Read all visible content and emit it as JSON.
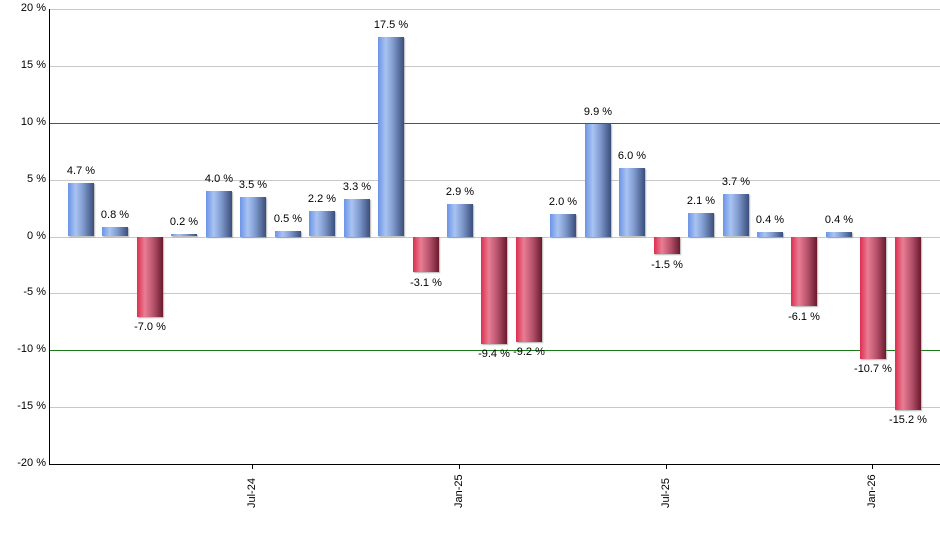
{
  "chart_data": {
    "type": "bar",
    "title": "",
    "xlabel": "",
    "ylabel": "",
    "ylim": [
      -20,
      20
    ],
    "yticks": [
      "20 %",
      "15 %",
      "10 %",
      "5 %",
      "0 %",
      "-5 %",
      "-10 %",
      "-15 %",
      "-20 %"
    ],
    "ytick_values": [
      20,
      15,
      10,
      5,
      0,
      -5,
      -10,
      -15,
      -20
    ],
    "reference_lines": [
      10,
      -10
    ],
    "grid": true,
    "legend": null,
    "x_tick_labels": [
      {
        "label": "Jul-24",
        "bar_index": 5
      },
      {
        "label": "Jan-25",
        "bar_index": 11
      },
      {
        "label": "Jul-25",
        "bar_index": 17
      },
      {
        "label": "Jan-26",
        "bar_index": 23
      }
    ],
    "values": [
      4.7,
      0.8,
      -7.0,
      0.2,
      4.0,
      3.5,
      0.5,
      2.2,
      3.3,
      17.5,
      -3.1,
      2.9,
      -9.4,
      -9.2,
      2.0,
      9.9,
      6.0,
      -1.5,
      2.1,
      3.7,
      0.4,
      -6.1,
      0.4,
      -10.7,
      -15.2
    ],
    "value_labels": [
      "4.7 %",
      "0.8 %",
      "-7.0 %",
      "0.2 %",
      "4.0 %",
      "3.5 %",
      "0.5 %",
      "2.2 %",
      "3.3 %",
      "17.5 %",
      "-3.1 %",
      "2.9 %",
      "-9.4 %",
      "-9.2 %",
      "2.0 %",
      "9.9 %",
      "6.0 %",
      "-1.5 %",
      "2.1 %",
      "3.7 %",
      "0.4 %",
      "-6.1 %",
      "0.4 %",
      "-10.7 %",
      "-15.2 %"
    ],
    "colors": {
      "positive": "#7d9be0",
      "negative": "#c8385a",
      "reference_line": "#1a7a1a",
      "grid": "#c8c8c8"
    }
  }
}
